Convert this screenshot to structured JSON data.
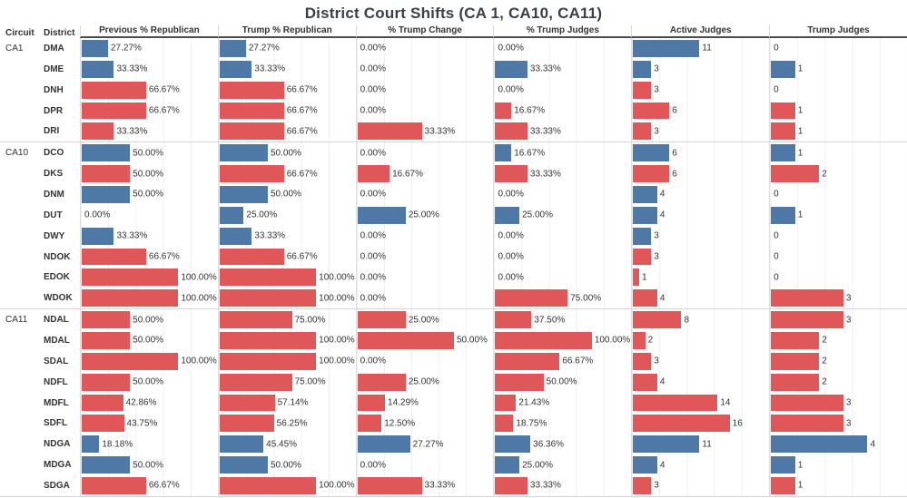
{
  "title": "District Court Shifts (CA 1, CA10, CA11)",
  "columns": [
    "Circuit",
    "District",
    "Previous % Republican",
    "Trump % Republican",
    "% Trump Change",
    "% Trump Judges",
    "Active Judges",
    "Trump Judges"
  ],
  "colors": {
    "republican_red": "#e05759",
    "democrat_blue": "#4e79a7"
  },
  "chart_data": {
    "type": "bar",
    "orientation": "horizontal",
    "grid": true,
    "measures": [
      {
        "key": "prev_pct_republican",
        "label": "Previous % Republican",
        "axis_max": 100,
        "format": "pct"
      },
      {
        "key": "trump_pct_republican",
        "label": "Trump % Republican",
        "axis_max": 100,
        "format": "pct"
      },
      {
        "key": "pct_trump_change",
        "label": "% Trump Change",
        "axis_max": 50,
        "format": "pct"
      },
      {
        "key": "pct_trump_judges",
        "label": "% Trump Judges",
        "axis_max": 100,
        "format": "pct"
      },
      {
        "key": "active_judges",
        "label": "Active Judges",
        "axis_max": 16,
        "format": "int"
      },
      {
        "key": "trump_judges",
        "label": "Trump Judges",
        "axis_max": 4,
        "format": "int"
      }
    ],
    "rows": [
      {
        "circuit": "CA1",
        "district": "DMA",
        "group_start": true,
        "values": [
          27.27,
          27.27,
          0,
          0,
          11,
          0
        ],
        "colors": [
          "blue",
          "blue",
          null,
          null,
          "blue",
          null
        ]
      },
      {
        "circuit": "CA1",
        "district": "DME",
        "group_start": false,
        "values": [
          33.33,
          33.33,
          0,
          33.33,
          3,
          1
        ],
        "colors": [
          "blue",
          "blue",
          null,
          "blue",
          "blue",
          "blue"
        ]
      },
      {
        "circuit": "CA1",
        "district": "DNH",
        "group_start": false,
        "values": [
          66.67,
          66.67,
          0,
          0,
          3,
          0
        ],
        "colors": [
          "red",
          "red",
          null,
          null,
          "red",
          null
        ]
      },
      {
        "circuit": "CA1",
        "district": "DPR",
        "group_start": false,
        "values": [
          66.67,
          66.67,
          0,
          16.67,
          6,
          1
        ],
        "colors": [
          "red",
          "red",
          null,
          "red",
          "red",
          "red"
        ]
      },
      {
        "circuit": "CA1",
        "district": "DRI",
        "group_start": false,
        "values": [
          33.33,
          66.67,
          33.33,
          33.33,
          3,
          1
        ],
        "colors": [
          "red",
          "red",
          "red",
          "red",
          "red",
          "red"
        ]
      },
      {
        "circuit": "CA10",
        "district": "DCO",
        "group_start": true,
        "values": [
          50,
          50,
          0,
          16.67,
          6,
          1
        ],
        "colors": [
          "blue",
          "blue",
          null,
          "blue",
          "blue",
          "blue"
        ]
      },
      {
        "circuit": "CA10",
        "district": "DKS",
        "group_start": false,
        "values": [
          50,
          66.67,
          16.67,
          33.33,
          6,
          2
        ],
        "colors": [
          "red",
          "red",
          "red",
          "red",
          "red",
          "red"
        ]
      },
      {
        "circuit": "CA10",
        "district": "DNM",
        "group_start": false,
        "values": [
          50,
          50,
          0,
          0,
          4,
          0
        ],
        "colors": [
          "blue",
          "blue",
          null,
          null,
          "blue",
          null
        ]
      },
      {
        "circuit": "CA10",
        "district": "DUT",
        "group_start": false,
        "values": [
          0,
          25,
          25,
          25,
          4,
          1
        ],
        "colors": [
          null,
          "blue",
          "blue",
          "blue",
          "blue",
          "blue"
        ]
      },
      {
        "circuit": "CA10",
        "district": "DWY",
        "group_start": false,
        "values": [
          33.33,
          33.33,
          0,
          0,
          3,
          0
        ],
        "colors": [
          "blue",
          "blue",
          null,
          null,
          "blue",
          null
        ]
      },
      {
        "circuit": "CA10",
        "district": "NDOK",
        "group_start": false,
        "values": [
          66.67,
          66.67,
          0,
          0,
          3,
          0
        ],
        "colors": [
          "red",
          "red",
          null,
          null,
          "red",
          null
        ]
      },
      {
        "circuit": "CA10",
        "district": "EDOK",
        "group_start": false,
        "values": [
          100,
          100,
          0,
          0,
          1,
          0
        ],
        "colors": [
          "red",
          "red",
          null,
          null,
          "red",
          null
        ]
      },
      {
        "circuit": "CA10",
        "district": "WDOK",
        "group_start": false,
        "values": [
          100,
          100,
          0,
          75,
          4,
          3
        ],
        "colors": [
          "red",
          "red",
          null,
          "red",
          "red",
          "red"
        ]
      },
      {
        "circuit": "CA11",
        "district": "NDAL",
        "group_start": true,
        "values": [
          50,
          75,
          25,
          37.5,
          8,
          3
        ],
        "colors": [
          "red",
          "red",
          "red",
          "red",
          "red",
          "red"
        ]
      },
      {
        "circuit": "CA11",
        "district": "MDAL",
        "group_start": false,
        "values": [
          50,
          100,
          50,
          100,
          2,
          2
        ],
        "colors": [
          "red",
          "red",
          "red",
          "red",
          "red",
          "red"
        ]
      },
      {
        "circuit": "CA11",
        "district": "SDAL",
        "group_start": false,
        "values": [
          100,
          100,
          0,
          66.67,
          3,
          2
        ],
        "colors": [
          "red",
          "red",
          null,
          "red",
          "red",
          "red"
        ]
      },
      {
        "circuit": "CA11",
        "district": "NDFL",
        "group_start": false,
        "values": [
          50,
          75,
          25,
          50,
          4,
          2
        ],
        "colors": [
          "red",
          "red",
          "red",
          "red",
          "red",
          "red"
        ]
      },
      {
        "circuit": "CA11",
        "district": "MDFL",
        "group_start": false,
        "values": [
          42.86,
          57.14,
          14.29,
          21.43,
          14,
          3
        ],
        "colors": [
          "red",
          "red",
          "red",
          "red",
          "red",
          "red"
        ]
      },
      {
        "circuit": "CA11",
        "district": "SDFL",
        "group_start": false,
        "values": [
          43.75,
          56.25,
          12.5,
          18.75,
          16,
          3
        ],
        "colors": [
          "red",
          "red",
          "red",
          "red",
          "red",
          "red"
        ]
      },
      {
        "circuit": "CA11",
        "district": "NDGA",
        "group_start": false,
        "values": [
          18.18,
          45.45,
          27.27,
          36.36,
          11,
          4
        ],
        "colors": [
          "blue",
          "blue",
          "blue",
          "blue",
          "blue",
          "blue"
        ]
      },
      {
        "circuit": "CA11",
        "district": "MDGA",
        "group_start": false,
        "values": [
          50,
          50,
          0,
          25,
          4,
          1
        ],
        "colors": [
          "blue",
          "blue",
          null,
          "blue",
          "blue",
          "blue"
        ]
      },
      {
        "circuit": "CA11",
        "district": "SDGA",
        "group_start": false,
        "values": [
          66.67,
          100,
          33.33,
          33.33,
          3,
          1
        ],
        "colors": [
          "red",
          "red",
          "red",
          "red",
          "red",
          "red"
        ]
      }
    ]
  }
}
